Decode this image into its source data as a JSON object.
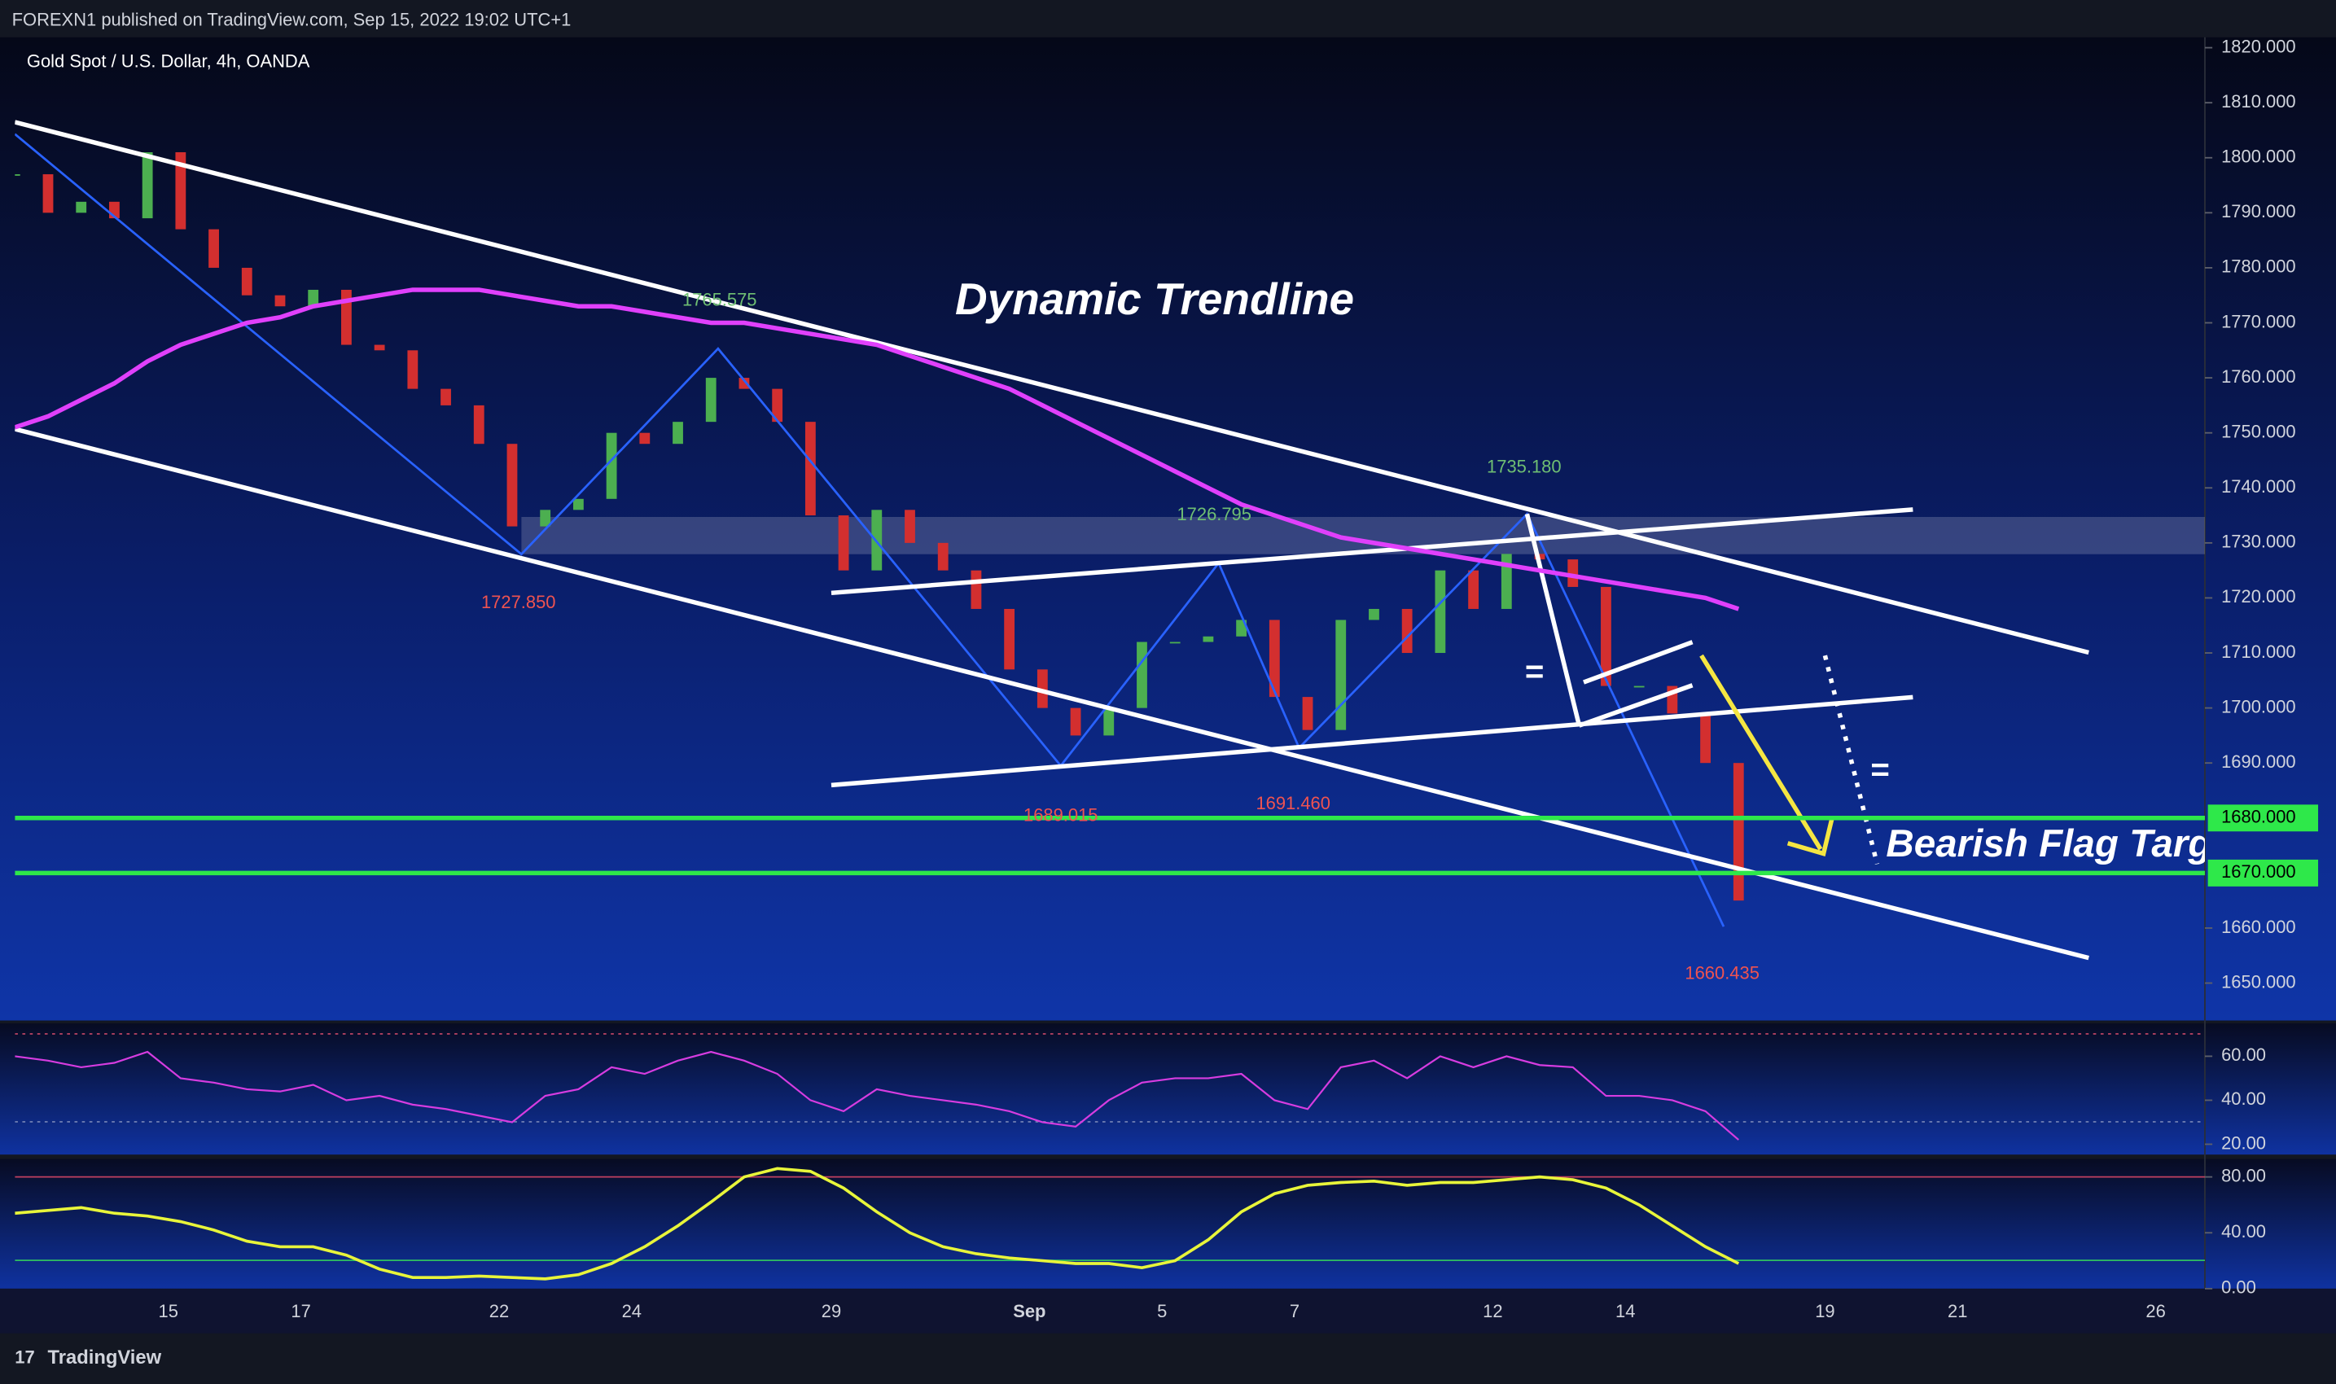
{
  "header": {
    "published": "FOREXN1 published on TradingView.com, Sep 15, 2022 19:02 UTC+1",
    "footer": "TradingView"
  },
  "chart_data": [
    {
      "type": "candlestick",
      "title": "Gold Spot / U.S. Dollar, 4h, OANDA",
      "annotations": [
        "Dynamic Trendline",
        "Bearish Flag Targ",
        "=",
        "="
      ],
      "price_labels": [
        "1765.575",
        "1727.850",
        "1726.795",
        "1735.180",
        "1689.015",
        "1691.460",
        "1660.435"
      ],
      "up_color": "#4caf50",
      "down_color": "#d32f2f",
      "close": [
        1797,
        1790,
        1792,
        1789,
        1801,
        1787,
        1780,
        1775,
        1773,
        1776,
        1766,
        1765,
        1758,
        1755,
        1748,
        1733,
        1736,
        1738,
        1750,
        1748,
        1752,
        1760,
        1758,
        1752,
        1735,
        1725,
        1736,
        1730,
        1725,
        1718,
        1707,
        1700,
        1695,
        1700,
        1712,
        1712,
        1713,
        1716,
        1702,
        1696,
        1716,
        1718,
        1710,
        1725,
        1718,
        1728,
        1727,
        1722,
        1704,
        1704,
        1699,
        1690,
        1665
      ],
      "ma_color": "#e040fb",
      "ma_values": [
        1751,
        1753,
        1756,
        1759,
        1763,
        1766,
        1768,
        1770,
        1771,
        1773,
        1774,
        1775,
        1776,
        1776,
        1776,
        1775,
        1774,
        1773,
        1773,
        1772,
        1771,
        1770,
        1770,
        1769,
        1768,
        1767,
        1766,
        1764,
        1762,
        1760,
        1758,
        1755,
        1752,
        1749,
        1746,
        1743,
        1740,
        1737,
        1735,
        1733,
        1731,
        1730,
        1729,
        1728,
        1727,
        1726,
        1725,
        1724,
        1723,
        1722,
        1721,
        1720,
        1718
      ],
      "levels": [
        {
          "value": 1680,
          "label": "1680.000"
        },
        {
          "value": 1670,
          "label": "1670.000"
        }
      ],
      "level_color": "#2ee84a",
      "ylim": [
        1643.2,
        1821.9
      ],
      "yticks": [
        {
          "value": 1650,
          "label": "1650.000"
        },
        {
          "value": 1660,
          "label": "1660.000"
        },
        {
          "value": 1690,
          "label": "1690.000"
        },
        {
          "value": 1700,
          "label": "1700.000"
        },
        {
          "value": 1710,
          "label": "1710.000"
        },
        {
          "value": 1720,
          "label": "1720.000"
        },
        {
          "value": 1730,
          "label": "1730.000"
        },
        {
          "value": 1740,
          "label": "1740.000"
        },
        {
          "value": 1750,
          "label": "1750.000"
        },
        {
          "value": 1760,
          "label": "1760.000"
        },
        {
          "value": 1770,
          "label": "1770.000"
        },
        {
          "value": 1780,
          "label": "1780.000"
        },
        {
          "value": 1790,
          "label": "1790.000"
        },
        {
          "value": 1800,
          "label": "1800.000"
        },
        {
          "value": 1810,
          "label": "1810.000"
        },
        {
          "value": 1820,
          "label": "1820.000"
        }
      ],
      "x_labels": [
        "15",
        "17",
        "22",
        "24",
        "29",
        "Sep",
        "5",
        "7",
        "12",
        "14",
        "19",
        "21",
        "26"
      ]
    },
    {
      "type": "line",
      "color": "#d63ce0",
      "values": [
        60,
        58,
        55,
        57,
        62,
        50,
        48,
        45,
        44,
        47,
        40,
        42,
        38,
        36,
        33,
        30,
        42,
        45,
        55,
        52,
        58,
        62,
        58,
        52,
        40,
        35,
        45,
        42,
        40,
        38,
        35,
        30,
        28,
        40,
        48,
        50,
        50,
        52,
        40,
        36,
        55,
        58,
        50,
        60,
        55,
        60,
        56,
        55,
        42,
        42,
        40,
        35,
        22
      ],
      "ylim": [
        15.3,
        74.9
      ],
      "yticks": [
        {
          "value": 60,
          "label": "60.00"
        },
        {
          "value": 40,
          "label": "40.00"
        },
        {
          "value": 20,
          "label": "20.00"
        }
      ]
    },
    {
      "type": "line",
      "color": "#e8f53a",
      "values": [
        54,
        56,
        58,
        54,
        52,
        48,
        42,
        34,
        30,
        30,
        24,
        14,
        8,
        8,
        9,
        8,
        7,
        10,
        18,
        30,
        45,
        62,
        80,
        86,
        84,
        72,
        55,
        40,
        30,
        25,
        22,
        20,
        18,
        18,
        15,
        20,
        35,
        55,
        68,
        74,
        76,
        77,
        74,
        76,
        76,
        78,
        80,
        78,
        72,
        60,
        45,
        30,
        18
      ],
      "ylim": [
        0,
        92.8
      ],
      "yticks": [
        {
          "value": 80,
          "label": "80.00"
        },
        {
          "value": 40,
          "label": "40.00"
        },
        {
          "value": 0,
          "label": "0.00"
        }
      ]
    }
  ]
}
